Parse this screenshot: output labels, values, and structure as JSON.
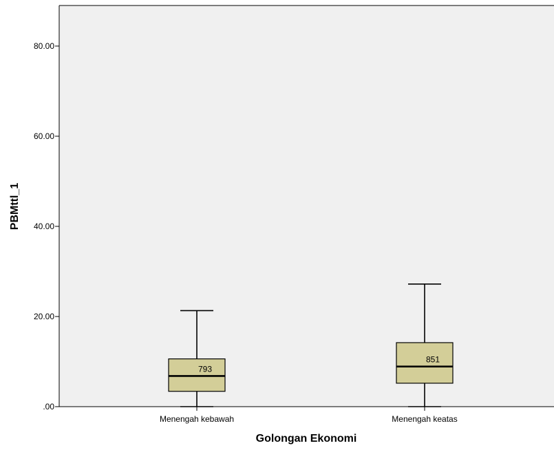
{
  "chart_data": {
    "type": "boxplot",
    "title": "",
    "xlabel": "Golongan Ekonomi",
    "ylabel": "PBMttl_1",
    "ylim": [
      0,
      89
    ],
    "y_ticks": [
      0,
      20,
      40,
      60,
      80
    ],
    "y_tick_labels": [
      ".00",
      "20.00",
      "40.00",
      "60.00",
      "80.00"
    ],
    "grid": false,
    "plot_background": "#f0f0f0",
    "box_fill": "#d3ce98",
    "categories": [
      "Menengah kebawah",
      "Menengah keatas"
    ],
    "boxes": [
      {
        "category": "Menengah kebawah",
        "whisker_low": 0,
        "q1": 3.4,
        "median": 6.8,
        "q3": 10.6,
        "whisker_high": 21.3,
        "label": "793"
      },
      {
        "category": "Menengah keatas",
        "whisker_low": 0,
        "q1": 5.2,
        "median": 8.9,
        "q3": 14.2,
        "whisker_high": 27.2,
        "label": "851"
      }
    ]
  }
}
